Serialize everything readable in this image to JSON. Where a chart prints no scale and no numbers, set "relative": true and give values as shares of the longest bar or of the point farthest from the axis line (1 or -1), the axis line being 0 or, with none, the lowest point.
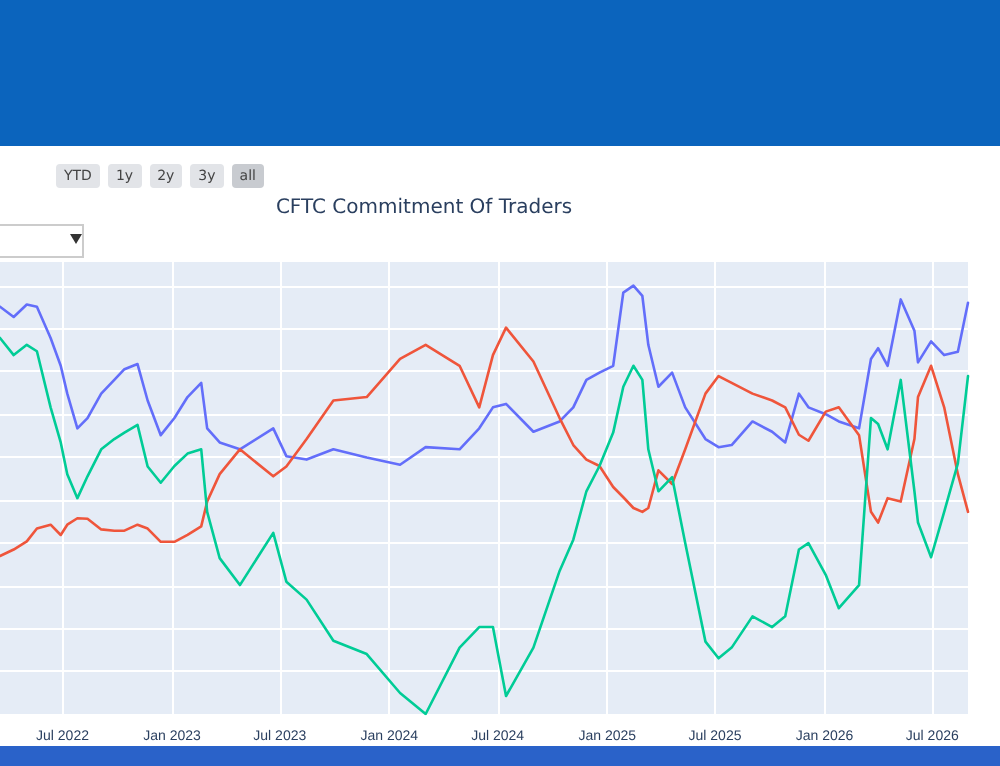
{
  "chart_data": {
    "type": "line",
    "title": "CFTC Commitment Of Traders",
    "relative": true,
    "grid": true,
    "marker": "none",
    "line_style": "solid",
    "annotations": [
      "YTD",
      "1y",
      "2y",
      "3y",
      "all"
    ],
    "xlim": [
      "2022-03-18",
      "2026-08-30"
    ],
    "xticks": [
      {
        "value": "2022-07-01",
        "label": "Jul 2022"
      },
      {
        "value": "2023-01-01",
        "label": "Jan 2023"
      },
      {
        "value": "2023-07-01",
        "label": "Jul 2023"
      },
      {
        "value": "2024-01-01",
        "label": "Jan 2024"
      },
      {
        "value": "2024-07-01",
        "label": "Jul 2024"
      },
      {
        "value": "2025-01-01",
        "label": "Jan 2025"
      },
      {
        "value": "2025-07-01",
        "label": "Jul 2025"
      },
      {
        "value": "2026-01-01",
        "label": "Jan 2026"
      },
      {
        "value": "2026-07-01",
        "label": "Jul 2026"
      }
    ],
    "x": [
      "2022-03-18",
      "2022-04-10",
      "2022-05-02",
      "2022-05-19",
      "2022-06-11",
      "2022-06-28",
      "2022-07-09",
      "2022-07-26",
      "2022-08-12",
      "2022-09-04",
      "2022-09-26",
      "2022-10-13",
      "2022-11-04",
      "2022-11-21",
      "2022-12-13",
      "2023-01-05",
      "2023-01-27",
      "2023-02-19",
      "2023-03-01",
      "2023-03-22",
      "2023-04-25",
      "2023-06-20",
      "2023-07-12",
      "2023-08-15",
      "2023-09-29",
      "2023-11-24",
      "2024-01-19",
      "2024-03-02",
      "2024-04-28",
      "2024-05-31",
      "2024-06-23",
      "2024-07-15",
      "2024-08-30",
      "2024-10-13",
      "2024-11-05",
      "2024-11-27",
      "2024-12-19",
      "2025-01-11",
      "2025-01-28",
      "2025-02-14",
      "2025-03-01",
      "2025-03-11",
      "2025-03-28",
      "2025-04-20",
      "2025-05-12",
      "2025-06-15",
      "2025-07-07",
      "2025-07-29",
      "2025-09-02",
      "2025-10-05",
      "2025-10-27",
      "2025-11-19",
      "2025-12-05",
      "2026-01-03",
      "2026-01-25",
      "2026-02-28",
      "2026-03-20",
      "2026-04-01",
      "2026-04-17",
      "2026-05-09",
      "2026-06-01",
      "2026-06-07",
      "2026-06-29",
      "2026-07-21",
      "2026-08-13",
      "2026-08-30"
    ],
    "series": [
      {
        "color": "#636efa",
        "values": [
          0.951,
          0.927,
          0.956,
          0.951,
          0.878,
          0.813,
          0.748,
          0.667,
          0.691,
          0.748,
          0.78,
          0.805,
          0.817,
          0.732,
          0.651,
          0.691,
          0.74,
          0.773,
          0.667,
          0.634,
          0.618,
          0.667,
          0.602,
          0.594,
          0.618,
          0.599,
          0.582,
          0.623,
          0.618,
          0.667,
          0.716,
          0.724,
          0.659,
          0.683,
          0.716,
          0.78,
          0.797,
          0.813,
          0.984,
          1.0,
          0.976,
          0.862,
          0.764,
          0.797,
          0.716,
          0.642,
          0.623,
          0.628,
          0.683,
          0.659,
          0.634,
          0.748,
          0.716,
          0.7,
          0.683,
          0.667,
          0.829,
          0.854,
          0.813,
          0.968,
          0.895,
          0.821,
          0.87,
          0.838,
          0.846,
          0.96
        ]
      },
      {
        "color": "#ef553b",
        "values": [
          0.369,
          0.384,
          0.403,
          0.433,
          0.442,
          0.418,
          0.442,
          0.457,
          0.456,
          0.431,
          0.428,
          0.428,
          0.442,
          0.433,
          0.402,
          0.402,
          0.418,
          0.438,
          0.496,
          0.56,
          0.618,
          0.555,
          0.578,
          0.642,
          0.732,
          0.74,
          0.829,
          0.862,
          0.813,
          0.716,
          0.838,
          0.902,
          0.823,
          0.691,
          0.628,
          0.594,
          0.579,
          0.53,
          0.506,
          0.481,
          0.472,
          0.481,
          0.569,
          0.537,
          0.618,
          0.748,
          0.789,
          0.773,
          0.748,
          0.732,
          0.716,
          0.652,
          0.638,
          0.706,
          0.716,
          0.651,
          0.472,
          0.447,
          0.504,
          0.496,
          0.642,
          0.74,
          0.813,
          0.716,
          0.56,
          0.472
        ]
      },
      {
        "color": "#00cc96",
        "values": [
          0.878,
          0.838,
          0.862,
          0.847,
          0.716,
          0.634,
          0.56,
          0.504,
          0.555,
          0.618,
          0.642,
          0.657,
          0.675,
          0.578,
          0.54,
          0.579,
          0.608,
          0.618,
          0.472,
          0.364,
          0.301,
          0.423,
          0.309,
          0.267,
          0.171,
          0.14,
          0.049,
          0.0,
          0.155,
          0.203,
          0.203,
          0.042,
          0.155,
          0.334,
          0.407,
          0.52,
          0.579,
          0.657,
          0.764,
          0.813,
          0.78,
          0.618,
          0.52,
          0.553,
          0.399,
          0.169,
          0.13,
          0.155,
          0.228,
          0.203,
          0.228,
          0.384,
          0.399,
          0.325,
          0.247,
          0.301,
          0.691,
          0.677,
          0.618,
          0.78,
          0.52,
          0.447,
          0.366,
          0.472,
          0.585,
          0.789
        ]
      }
    ]
  }
}
